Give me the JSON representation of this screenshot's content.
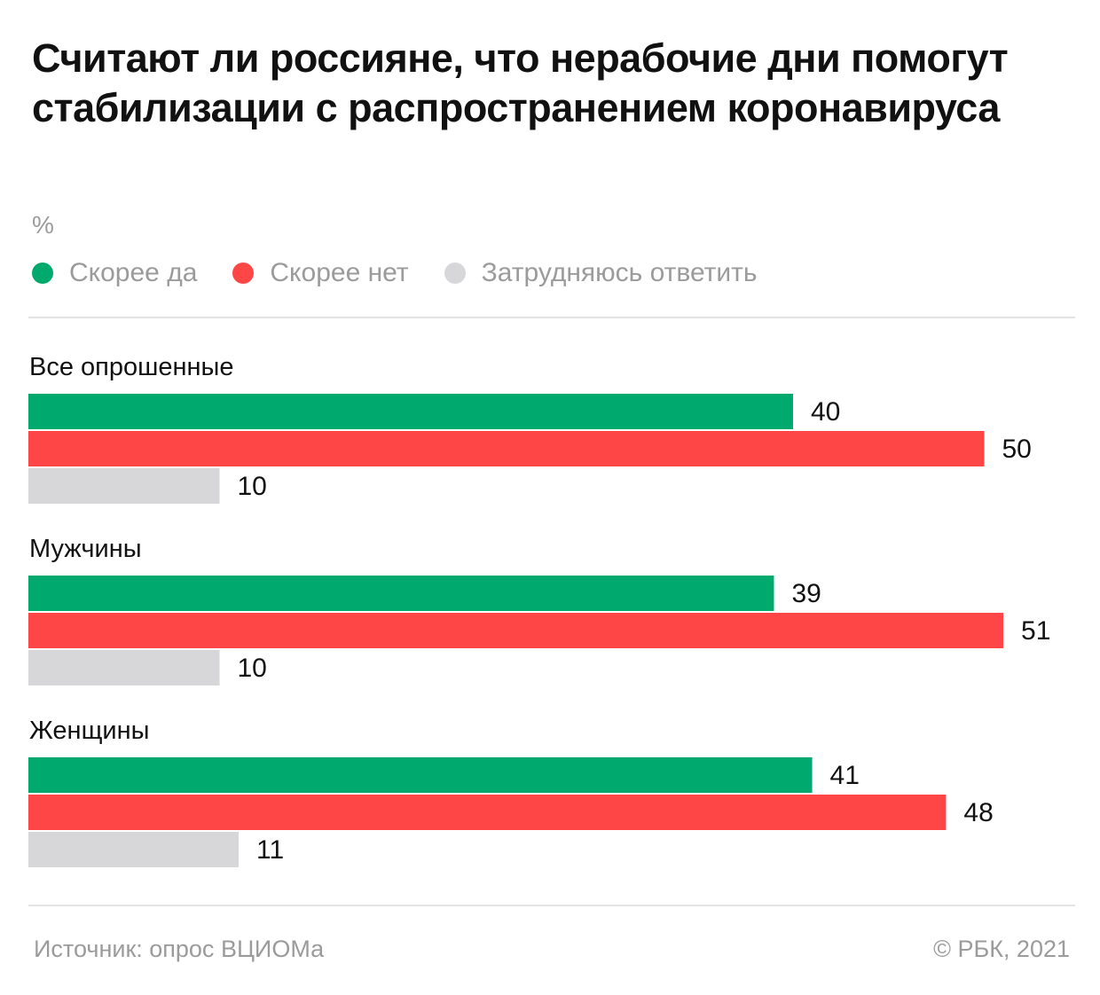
{
  "header": {
    "title": "Считают ли россияне, что нерабочие дни помогут стабилизации с распространением коронавируса",
    "unit": "%"
  },
  "legend": [
    {
      "label": "Скорее да",
      "color": "#00a96e"
    },
    {
      "label": "Скорее нет",
      "color": "#ff4646"
    },
    {
      "label": "Затрудняюсь ответить",
      "color": "#d7d7d9"
    }
  ],
  "footer": {
    "source": "Источник:  опрос ВЦИОМа",
    "copyright": "©  РБК, 2021"
  },
  "chart_data": {
    "type": "bar",
    "orientation": "horizontal",
    "categories": [
      "Все опрошенные",
      "Мужчины",
      "Женщины"
    ],
    "series": [
      {
        "name": "Скорее да",
        "values": [
          40,
          39,
          41
        ],
        "color": "#00a96e"
      },
      {
        "name": "Скорее нет",
        "values": [
          50,
          51,
          48
        ],
        "color": "#ff4646"
      },
      {
        "name": "Затрудняюсь ответить",
        "values": [
          10,
          10,
          11
        ],
        "color": "#d7d7d9"
      }
    ],
    "title": "Считают ли россияне, что нерабочие дни помогут стабилизации с распространением коронавируса",
    "ylabel": "%",
    "xlim": [
      0,
      51
    ],
    "grid": false,
    "legend_position": "top-left"
  }
}
